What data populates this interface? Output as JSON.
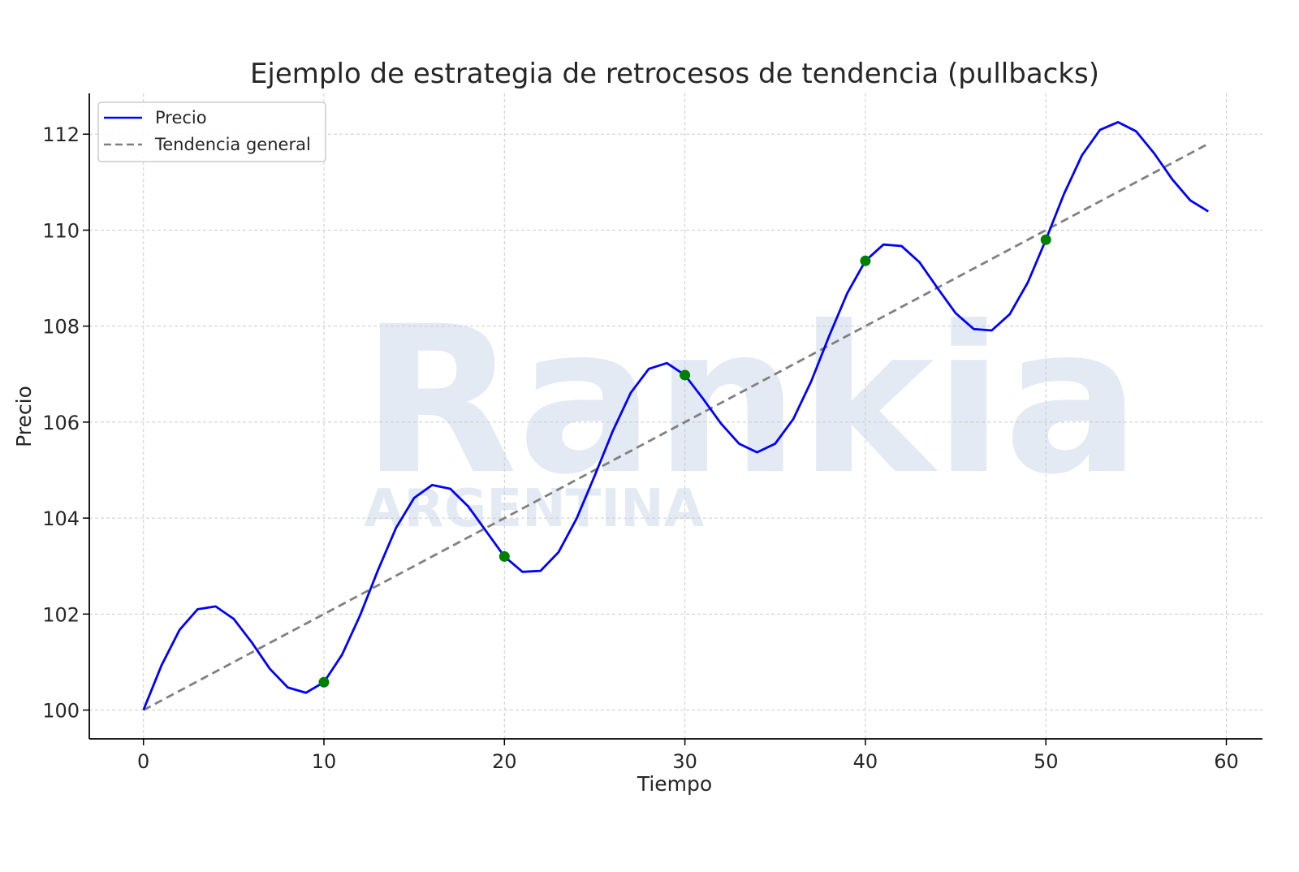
{
  "watermark": {
    "brand": "Rankia",
    "region": "ARGENTINA"
  },
  "chart_data": {
    "type": "line",
    "title": "Ejemplo de estrategia de retrocesos de tendencia (pullbacks)",
    "xlabel": "Tiempo",
    "ylabel": "Precio",
    "xlim": [
      -3,
      62
    ],
    "ylim": [
      99.4,
      112.85
    ],
    "xticks": [
      0,
      10,
      20,
      30,
      40,
      50,
      60
    ],
    "yticks": [
      100,
      102,
      104,
      106,
      108,
      110,
      112
    ],
    "grid": true,
    "legend_position": "top-left",
    "series": [
      {
        "name": "Precio",
        "style": "solid",
        "color": "#0000ff",
        "x": [
          0,
          1,
          2,
          3,
          4,
          5,
          6,
          7,
          8,
          9,
          10,
          11,
          12,
          13,
          14,
          15,
          16,
          17,
          18,
          19,
          20,
          21,
          22,
          23,
          24,
          25,
          26,
          27,
          28,
          29,
          30,
          31,
          32,
          33,
          34,
          35,
          36,
          37,
          38,
          39,
          40,
          41,
          42,
          43,
          44,
          45,
          46,
          47,
          48,
          49,
          50,
          51,
          52,
          53,
          54,
          55,
          56,
          57,
          58,
          59
        ],
        "values": [
          100.0,
          100.93,
          101.67,
          102.1,
          102.16,
          101.9,
          101.41,
          100.86,
          100.47,
          100.36,
          100.58,
          101.15,
          101.97,
          102.92,
          103.8,
          104.42,
          104.69,
          104.61,
          104.24,
          103.72,
          103.2,
          102.88,
          102.9,
          103.29,
          103.99,
          104.88,
          105.81,
          106.61,
          107.11,
          107.23,
          106.98,
          106.49,
          105.97,
          105.55,
          105.37,
          105.55,
          106.06,
          106.85,
          107.8,
          108.69,
          109.36,
          109.7,
          109.67,
          109.33,
          108.79,
          108.27,
          107.94,
          107.91,
          108.25,
          108.91,
          109.8,
          110.75,
          111.56,
          112.09,
          112.25,
          112.06,
          111.6,
          111.06,
          110.62,
          110.39
        ]
      },
      {
        "name": "Tendencia general",
        "style": "dashed",
        "color": "#808080",
        "x": [
          0,
          59
        ],
        "values": [
          100.0,
          111.8
        ]
      }
    ],
    "markers": {
      "color": "#008000",
      "x": [
        10,
        20,
        30,
        40,
        50
      ],
      "values": [
        100.58,
        103.2,
        106.98,
        109.36,
        109.8
      ]
    }
  }
}
